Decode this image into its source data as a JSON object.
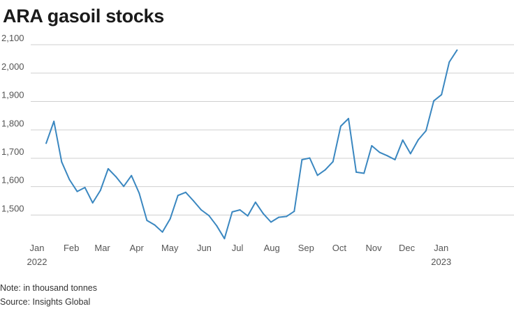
{
  "chart_data": {
    "type": "line",
    "title": "ARA gasoil stocks",
    "xlabel": "",
    "ylabel": "",
    "note": "Note: in thousand tonnes",
    "source": "Source: Insights Global",
    "grid": true,
    "ylim": [
      1410,
      2120
    ],
    "y_ticks": [
      1500,
      1600,
      1700,
      1800,
      1900,
      2000,
      2100
    ],
    "y_tick_labels": [
      "1,500",
      "1,600",
      "1,700",
      "1,800",
      "1,900",
      "2,000",
      "2,100"
    ],
    "x_ticks": [
      {
        "label": "Jan",
        "year": "2022",
        "week": 0
      },
      {
        "label": "Feb",
        "year": "",
        "week": 4.43
      },
      {
        "label": "Mar",
        "year": "",
        "week": 8.43
      },
      {
        "label": "Apr",
        "year": "",
        "week": 12.86
      },
      {
        "label": "May",
        "year": "",
        "week": 17.14
      },
      {
        "label": "Jun",
        "year": "",
        "week": 21.57
      },
      {
        "label": "Jul",
        "year": "",
        "week": 25.86
      },
      {
        "label": "Aug",
        "year": "",
        "week": 30.29
      },
      {
        "label": "Sep",
        "year": "",
        "week": 34.71
      },
      {
        "label": "Oct",
        "year": "",
        "week": 39.0
      },
      {
        "label": "Nov",
        "year": "",
        "week": 43.43
      },
      {
        "label": "Dec",
        "year": "",
        "week": 47.71
      },
      {
        "label": "Jan",
        "year": "2023",
        "week": 52.14
      }
    ],
    "xlim_weeks": [
      0,
      53.5
    ],
    "series": [
      {
        "name": "ARA gasoil stocks",
        "color": "#3a87c0",
        "x_weeks": [
          0.64,
          1.64,
          2.64,
          3.64,
          4.64,
          5.64,
          6.64,
          7.64,
          8.64,
          9.64,
          10.64,
          11.64,
          12.64,
          13.64,
          14.64,
          15.64,
          16.64,
          17.64,
          18.64,
          19.64,
          20.64,
          21.64,
          22.64,
          23.64,
          24.64,
          25.64,
          26.64,
          27.64,
          28.64,
          29.64,
          30.64,
          31.64,
          32.64,
          33.64,
          34.64,
          35.64,
          36.64,
          37.64,
          38.64,
          39.64,
          40.64,
          41.64,
          42.64,
          43.64,
          44.64,
          45.64,
          46.64,
          47.64,
          48.64,
          49.64,
          50.64,
          51.64,
          52.64,
          53.64
        ],
        "values": [
          1753,
          1830,
          1687,
          1625,
          1583,
          1597,
          1543,
          1587,
          1663,
          1635,
          1601,
          1639,
          1577,
          1481,
          1465,
          1440,
          1487,
          1569,
          1580,
          1550,
          1518,
          1498,
          1462,
          1417,
          1511,
          1518,
          1497,
          1545,
          1505,
          1475,
          1492,
          1495,
          1513,
          1695,
          1701,
          1640,
          1659,
          1688,
          1813,
          1840,
          1651,
          1647,
          1744,
          1721,
          1709,
          1695,
          1764,
          1716,
          1765,
          1797,
          1902,
          1924,
          2039,
          2081
        ]
      }
    ]
  }
}
